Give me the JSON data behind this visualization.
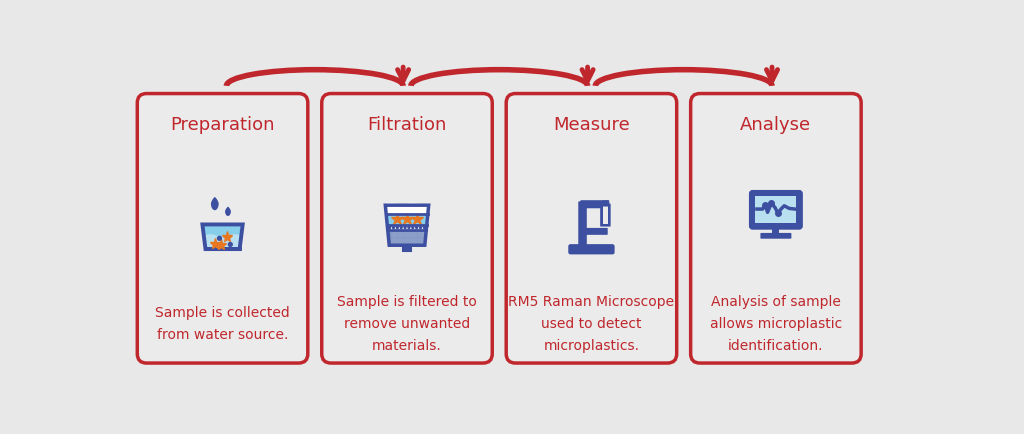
{
  "bg_color": "#e8e8e8",
  "card_bg": "#ebebeb",
  "card_border": "#c0272d",
  "arrow_color": "#c0272d",
  "title_color": "#c0272d",
  "text_color": "#c0272d",
  "icon_color": "#3d4fa0",
  "light_blue": "#87ceeb",
  "lighter_blue": "#b8e0f0",
  "white": "#ffffff",
  "orange": "#e87722",
  "dot_blue": "#3d4fa0",
  "filter_mid": "#9ab8d8",
  "filter_bottom": "#7a92c0",
  "steps": [
    {
      "title": "Preparation",
      "description": "Sample is collected\nfrom water source."
    },
    {
      "title": "Filtration",
      "description": "Sample is filtered to\nremove unwanted\nmaterials."
    },
    {
      "title": "Measure",
      "description": "RM5 Raman Microscope\nused to detect\nmicroplastics."
    },
    {
      "title": "Analyse",
      "description": "Analysis of sample\nallows microplastic\nidentification."
    }
  ],
  "title_fontsize": 13,
  "desc_fontsize": 10,
  "figsize": [
    10.24,
    4.35
  ],
  "dpi": 100
}
